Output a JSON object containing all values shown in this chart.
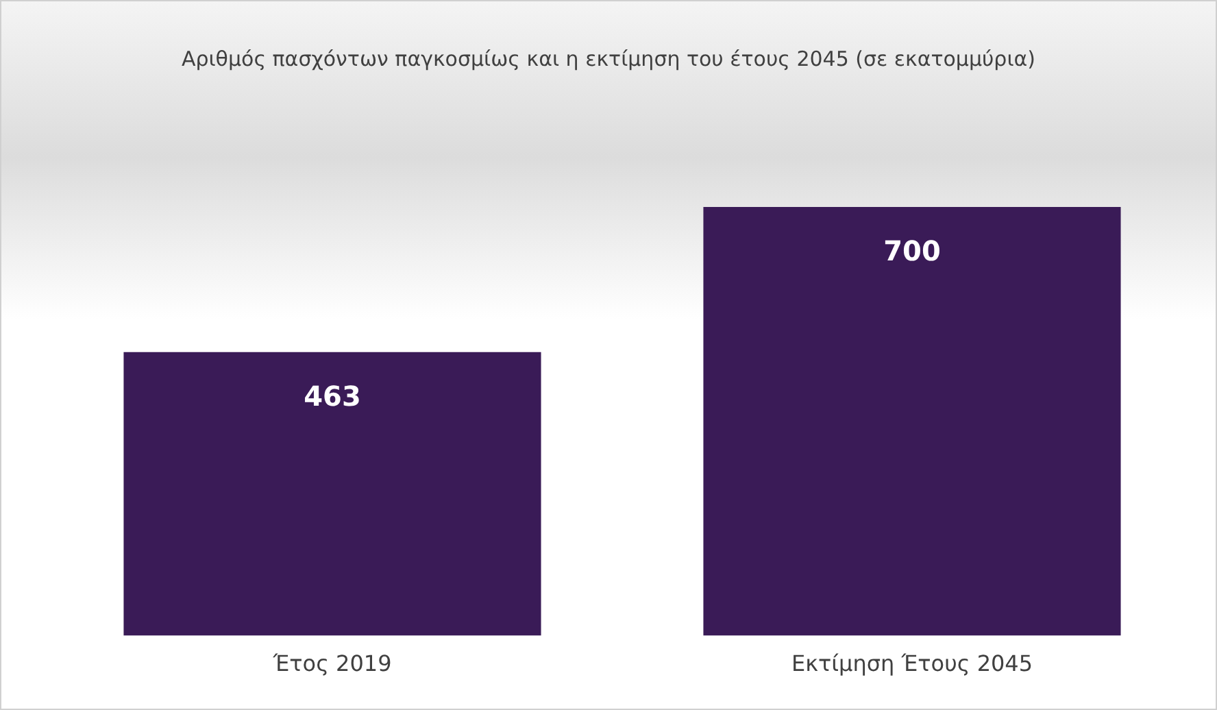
{
  "chart_data": {
    "type": "bar",
    "title": "Αριθμός πασχόντων παγκοσμίως και η εκτίμηση του έτους 2045 (σε εκατομμύρια)",
    "categories": [
      "Έτος 2019",
      "Εκτίμηση Έτους 2045"
    ],
    "values": [
      463,
      700
    ],
    "color": "#3a1b57",
    "data_labels": true,
    "grid": false,
    "legend": false
  }
}
